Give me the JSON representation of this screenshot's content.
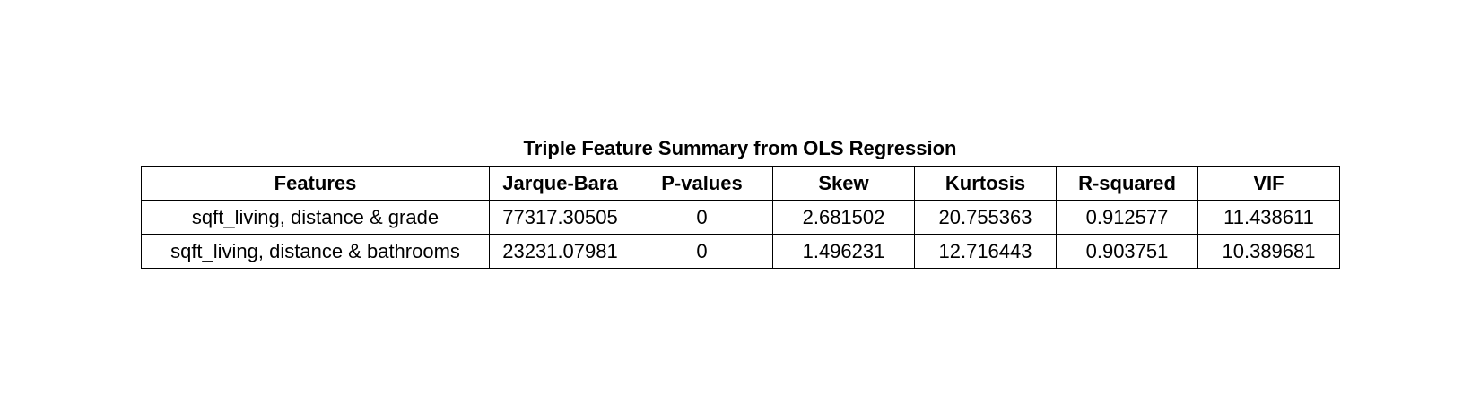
{
  "table": {
    "title": "Triple Feature Summary from OLS Regression",
    "headers": [
      "Features",
      "Jarque-Bara",
      "P-values",
      "Skew",
      "Kurtosis",
      "R-squared",
      "VIF"
    ],
    "rows": [
      [
        "sqft_living, distance & grade",
        "77317.30505",
        "0",
        "2.681502",
        "20.755363",
        "0.912577",
        "11.438611"
      ],
      [
        "sqft_living, distance & bathrooms",
        "23231.07981",
        "0",
        "1.496231",
        "12.716443",
        "0.903751",
        "10.389681"
      ]
    ]
  }
}
